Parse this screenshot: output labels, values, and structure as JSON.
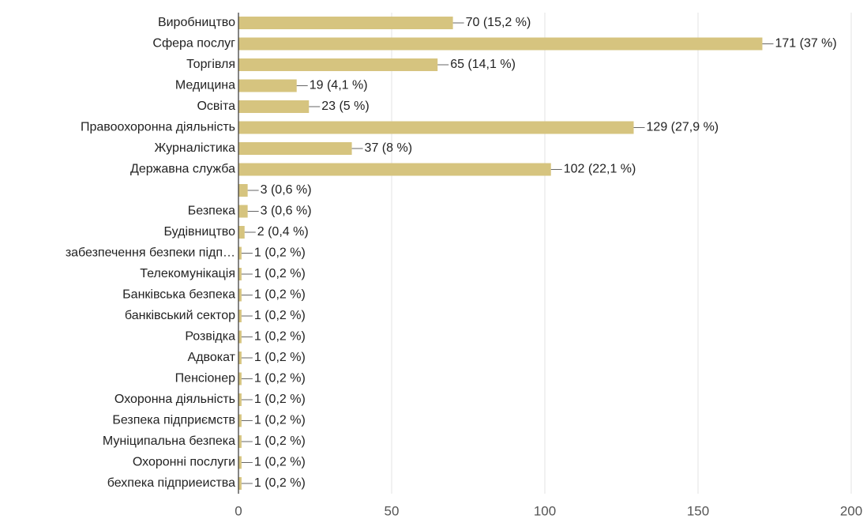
{
  "chart_data": {
    "type": "bar",
    "orientation": "horizontal",
    "categories": [
      "Виробництво",
      "Сфера послуг",
      "Торгівля",
      "Медицина",
      "Освіта",
      "Правоохоронна діяльність",
      "Журналістика",
      "Державна служба",
      null,
      "Безпека",
      "Будівництво",
      "забезпечення безпеки підп…",
      "Телекомунікація",
      "Банківська безпека",
      "банківський сектор",
      "Розвідка",
      "Адвокат",
      "Пенсіонер",
      "Охоронна діяльність",
      "Безпека підприємств",
      "Муніципальна безпека",
      "Охоронні послуги",
      "бехпека підприеиства"
    ],
    "values": [
      70,
      171,
      65,
      19,
      23,
      129,
      37,
      102,
      3,
      3,
      2,
      1,
      1,
      1,
      1,
      1,
      1,
      1,
      1,
      1,
      1,
      1,
      1
    ],
    "value_labels": [
      "70 (15,2 %)",
      "171 (37 %)",
      "65 (14,1 %)",
      "19 (4,1 %)",
      "23 (5 %)",
      "129 (27,9 %)",
      "37 (8 %)",
      "102 (22,1 %)",
      "3 (0,6 %)",
      "3 (0,6 %)",
      "2 (0,4 %)",
      "1 (0,2 %)",
      "1 (0,2 %)",
      "1 (0,2 %)",
      "1 (0,2 %)",
      "1 (0,2 %)",
      "1 (0,2 %)",
      "1 (0,2 %)",
      "1 (0,2 %)",
      "1 (0,2 %)",
      "1 (0,2 %)",
      "1 (0,2 %)",
      "1 (0,2 %)"
    ],
    "color": "#d6c47f",
    "xlim": [
      0,
      200
    ],
    "xticks": [
      0,
      50,
      100,
      150,
      200
    ],
    "grid": true
  }
}
